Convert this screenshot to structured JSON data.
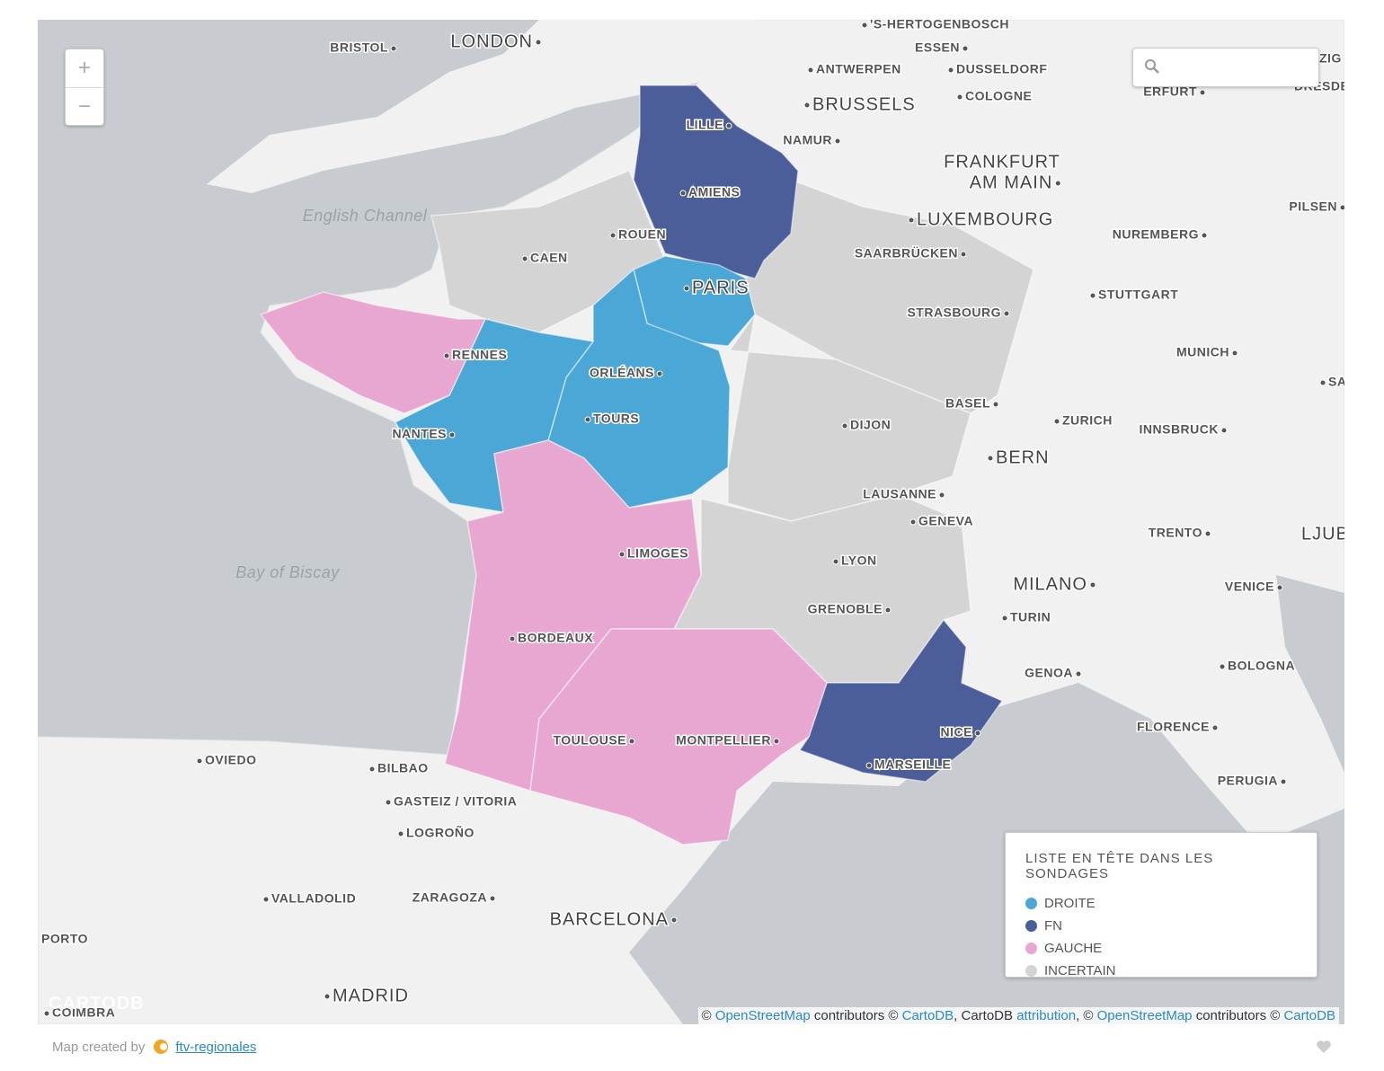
{
  "map": {
    "zoom": {
      "in": "+",
      "out": "−"
    },
    "labels": [
      "'S-HERTOGENBOSCH",
      "BRISTOL",
      "LONDON",
      "ESSEN",
      "ANTWERPEN",
      "DUSSELDORF",
      "ZIG",
      "BRUSSELS",
      "COLOGNE",
      "ERFURT",
      "DRESDE",
      "LILLE",
      "NAMUR",
      "FRANKFURT",
      "AM MAIN",
      "AMIENS",
      "ROUEN",
      "LUXEMBOURG",
      "PILSEN",
      "CAEN",
      "SAARBRÜCKEN",
      "NUREMBERG",
      "PARIS",
      "STUTTGART",
      "STRASBOURG",
      "RENNES",
      "MUNICH",
      "ORLÉANS",
      "SA",
      "TOURS",
      "NANTES",
      "DIJON",
      "BASEL",
      "ZURICH",
      "INNSBRUCK",
      "BERN",
      "LAUSANNE",
      "GENEVA",
      "TRENTO",
      "LJUB",
      "LIMOGES",
      "LYON",
      "MILANO",
      "VENICE",
      "GRENOBLE",
      "TURIN",
      "BORDEAUX",
      "GENOA",
      "BOLOGNA",
      "FLORENCE",
      "NICE",
      "TOULOUSE",
      "MONTPELLIER",
      "OVIEDO",
      "BILBAO",
      "MARSEILLE",
      "PERUGIA",
      "GASTEIZ / VITORIA",
      "LOGROÑO",
      "VALLADOLID",
      "ZARAGOZA",
      "BARCELONA",
      "PORTO",
      "MADRID",
      "COIMBRA"
    ],
    "water_labels": [
      "English Channel",
      "Bay of Biscay"
    ],
    "watermark": "CARTODB"
  },
  "legend": {
    "title": "LISTE EN TÊTE DANS LES SONDAGES",
    "items": [
      {
        "label": "DROITE",
        "color": "#4aa7d6"
      },
      {
        "label": "FN",
        "color": "#4b5e9a"
      },
      {
        "label": "GAUCHE",
        "color": "#e8a7d0"
      },
      {
        "label": "INCERTAIN",
        "color": "#d4d4d4"
      }
    ]
  },
  "attribution": [
    {
      "text": "© ",
      "link": false
    },
    {
      "text": "OpenStreetMap",
      "link": true
    },
    {
      "text": " contributors © ",
      "link": false
    },
    {
      "text": "CartoDB",
      "link": true
    },
    {
      "text": ", CartoDB ",
      "link": false
    },
    {
      "text": "attribution",
      "link": true
    },
    {
      "text": ", © ",
      "link": false
    },
    {
      "text": "OpenStreetMap",
      "link": true
    },
    {
      "text": " contributors © ",
      "link": false
    },
    {
      "text": "CartoDB",
      "link": true
    }
  ],
  "footer": {
    "text": "Map created by",
    "link": "ftv-regionales"
  }
}
